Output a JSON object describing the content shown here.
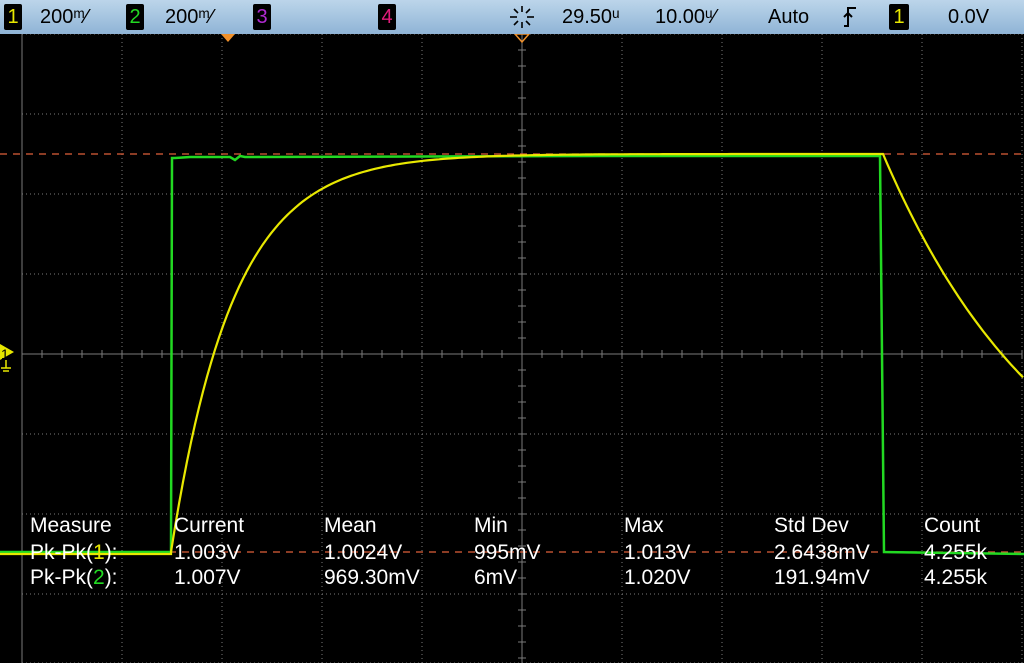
{
  "status_bar": {
    "ch1_label": "1",
    "ch1_scale": "200ᵐ⁄",
    "ch2_label": "2",
    "ch2_scale": "200ᵐ⁄",
    "ch3_label": "3",
    "ch4_label": "4",
    "trigger_icon": "trigger-delay-icon",
    "time_delay": "29.50ᵘ",
    "time_scale": "10.00ᵘ⁄",
    "trigger_mode": "Auto",
    "trigger_edge_icon": "rising-edge-icon",
    "trigger_source": "1",
    "trigger_level": "0.0V"
  },
  "colors": {
    "ch1": "#e8e800",
    "ch2": "#22d922",
    "ch3": "#b02bd1",
    "ch4": "#e01b7a",
    "trigger_level_line": "#e0603a",
    "grid": "#7a7a7a",
    "background": "#000000"
  },
  "channel_marker": {
    "label": "1"
  },
  "measurements": {
    "headers": [
      "Measure",
      "Current",
      "Mean",
      "Min",
      "Max",
      "Std Dev",
      "Count"
    ],
    "rows": [
      {
        "name_prefix": "Pk-Pk(",
        "channel": "1",
        "name_suffix": "):",
        "values": [
          "1.003V",
          "1.0024V",
          "995mV",
          "1.013V",
          "2.6438mV",
          "4.255k"
        ]
      },
      {
        "name_prefix": "Pk-Pk(",
        "channel": "2",
        "name_suffix": "):",
        "values": [
          "1.007V",
          "969.30mV",
          "6mV",
          "1.020V",
          "191.94mV",
          "4.255k"
        ]
      }
    ]
  }
}
